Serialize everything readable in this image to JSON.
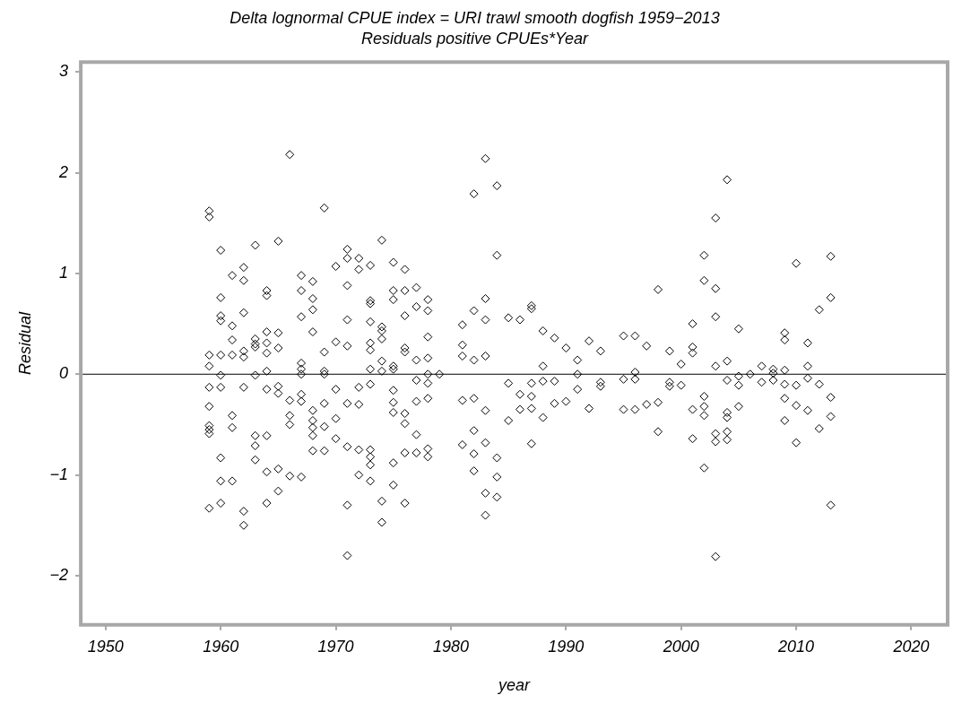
{
  "chart_data": {
    "type": "scatter",
    "title": "Delta lognormal CPUE index = URI trawl smooth dogfish 1959−2013",
    "subtitle": "Residuals positive CPUEs*Year",
    "xlabel": "year",
    "ylabel": "Residual",
    "x": [
      1959,
      1959,
      1959,
      1959,
      1959,
      1959,
      1959,
      1959,
      1959,
      1959,
      1960,
      1960,
      1960,
      1960,
      1960,
      1960,
      1960,
      1960,
      1960,
      1960,
      1961,
      1961,
      1961,
      1961,
      1961,
      1961,
      1961,
      1962,
      1962,
      1962,
      1962,
      1962,
      1962,
      1962,
      1962,
      1963,
      1963,
      1963,
      1963,
      1963,
      1963,
      1963,
      1963,
      1964,
      1964,
      1964,
      1964,
      1964,
      1964,
      1964,
      1964,
      1964,
      1964,
      1965,
      1965,
      1965,
      1965,
      1965,
      1965,
      1965,
      1966,
      1966,
      1966,
      1966,
      1966,
      1967,
      1967,
      1967,
      1967,
      1967,
      1967,
      1967,
      1967,
      1967,
      1968,
      1968,
      1968,
      1968,
      1968,
      1968,
      1968,
      1968,
      1968,
      1969,
      1969,
      1969,
      1969,
      1969,
      1969,
      1969,
      1970,
      1970,
      1970,
      1970,
      1970,
      1971,
      1971,
      1971,
      1971,
      1971,
      1971,
      1971,
      1971,
      1971,
      1972,
      1972,
      1972,
      1972,
      1972,
      1972,
      1973,
      1973,
      1973,
      1973,
      1973,
      1973,
      1973,
      1973,
      1973,
      1973,
      1973,
      1973,
      1974,
      1974,
      1974,
      1974,
      1974,
      1974,
      1974,
      1974,
      1975,
      1975,
      1975,
      1975,
      1975,
      1975,
      1975,
      1975,
      1975,
      1975,
      1976,
      1976,
      1976,
      1976,
      1976,
      1976,
      1976,
      1976,
      1976,
      1977,
      1977,
      1977,
      1977,
      1977,
      1977,
      1977,
      1978,
      1978,
      1978,
      1978,
      1978,
      1978,
      1978,
      1978,
      1978,
      1979,
      1981,
      1981,
      1981,
      1981,
      1981,
      1982,
      1982,
      1982,
      1982,
      1982,
      1982,
      1982,
      1983,
      1983,
      1983,
      1983,
      1983,
      1983,
      1983,
      1983,
      1984,
      1984,
      1984,
      1984,
      1984,
      1985,
      1985,
      1985,
      1986,
      1986,
      1986,
      1987,
      1987,
      1987,
      1987,
      1987,
      1987,
      1988,
      1988,
      1988,
      1988,
      1989,
      1989,
      1989,
      1990,
      1990,
      1991,
      1991,
      1991,
      1992,
      1992,
      1993,
      1993,
      1993,
      1995,
      1995,
      1995,
      1996,
      1996,
      1996,
      1996,
      1997,
      1997,
      1998,
      1998,
      1998,
      1999,
      1999,
      1999,
      2000,
      2000,
      2001,
      2001,
      2001,
      2001,
      2001,
      2002,
      2002,
      2002,
      2002,
      2002,
      2002,
      2003,
      2003,
      2003,
      2003,
      2003,
      2003,
      2003,
      2004,
      2004,
      2004,
      2004,
      2004,
      2004,
      2004,
      2005,
      2005,
      2005,
      2005,
      2006,
      2007,
      2007,
      2008,
      2008,
      2008,
      2009,
      2009,
      2009,
      2009,
      2009,
      2009,
      2010,
      2010,
      2010,
      2010,
      2011,
      2011,
      2011,
      2011,
      2012,
      2012,
      2012,
      2013,
      2013,
      2013,
      2013,
      2013
    ],
    "values": [
      1.62,
      1.56,
      0.19,
      0.08,
      -0.13,
      -0.32,
      -0.51,
      -0.55,
      -0.59,
      -1.33,
      1.23,
      0.76,
      0.58,
      0.53,
      0.19,
      -0.01,
      -0.13,
      -0.83,
      -1.06,
      -1.28,
      0.98,
      0.48,
      0.34,
      0.19,
      -0.41,
      -0.53,
      -1.06,
      1.06,
      0.93,
      0.61,
      0.23,
      0.17,
      -0.13,
      -1.36,
      -1.5,
      1.28,
      0.35,
      0.3,
      0.27,
      -0.01,
      -0.61,
      -0.71,
      -0.85,
      0.83,
      0.78,
      0.42,
      0.31,
      0.21,
      0.03,
      -0.15,
      -0.61,
      -0.97,
      -1.28,
      1.32,
      0.41,
      0.26,
      -0.12,
      -0.19,
      -0.94,
      -1.16,
      2.18,
      -0.26,
      -0.41,
      -0.5,
      -1.01,
      0.98,
      0.83,
      0.57,
      0.11,
      0.05,
      0,
      -0.2,
      -0.27,
      -1.02,
      0.92,
      0.75,
      0.64,
      0.42,
      -0.36,
      -0.46,
      -0.53,
      -0.61,
      -0.76,
      1.65,
      0.22,
      0.03,
      0,
      -0.29,
      -0.52,
      -0.76,
      1.07,
      0.32,
      -0.15,
      -0.44,
      -0.64,
      1.24,
      1.15,
      0.88,
      0.54,
      0.28,
      -0.29,
      -0.72,
      -1.3,
      -1.8,
      1.15,
      1.04,
      -0.13,
      -0.3,
      -0.75,
      -1,
      1.08,
      0.73,
      0.7,
      0.52,
      0.31,
      0.24,
      0.05,
      -0.1,
      -0.75,
      -0.82,
      -0.9,
      -1.06,
      1.33,
      0.47,
      0.43,
      0.35,
      0.13,
      0.03,
      -1.26,
      -1.47,
      1.11,
      0.83,
      0.74,
      0.08,
      0.05,
      -0.16,
      -0.28,
      -0.38,
      -0.88,
      -1.1,
      1.04,
      0.83,
      0.58,
      0.26,
      0.22,
      -0.39,
      -0.49,
      -0.78,
      -1.28,
      0.86,
      0.67,
      0.14,
      -0.06,
      -0.27,
      -0.6,
      -0.78,
      0.74,
      0.63,
      0.37,
      0.16,
      0,
      -0.09,
      -0.24,
      -0.74,
      -0.82,
      0,
      0.49,
      0.29,
      0.18,
      -0.26,
      -0.7,
      1.79,
      0.63,
      0.14,
      -0.24,
      -0.56,
      -0.79,
      -0.96,
      2.14,
      0.75,
      0.54,
      0.18,
      -0.36,
      -0.68,
      -1.18,
      -1.4,
      1.87,
      1.18,
      -0.83,
      -1.02,
      -1.22,
      0.56,
      -0.09,
      -0.46,
      0.54,
      -0.2,
      -0.35,
      0.68,
      0.65,
      -0.09,
      -0.22,
      -0.34,
      -0.69,
      0.43,
      0.08,
      -0.07,
      -0.43,
      0.36,
      -0.07,
      -0.29,
      0.26,
      -0.27,
      0.14,
      0,
      -0.15,
      0.33,
      -0.34,
      0.23,
      -0.08,
      -0.12,
      0.38,
      -0.05,
      -0.35,
      0.38,
      0.02,
      -0.05,
      -0.35,
      0.28,
      -0.3,
      0.84,
      -0.28,
      -0.57,
      0.23,
      -0.08,
      -0.12,
      0.1,
      -0.11,
      0.5,
      0.27,
      0.21,
      -0.35,
      -0.64,
      1.18,
      0.93,
      -0.22,
      -0.32,
      -0.41,
      -0.93,
      1.55,
      0.85,
      0.57,
      0.08,
      -0.59,
      -0.67,
      -1.81,
      1.93,
      0.13,
      -0.06,
      -0.38,
      -0.43,
      -0.57,
      -0.65,
      0.45,
      -0.02,
      -0.11,
      -0.32,
      0,
      0.08,
      -0.08,
      0.05,
      0.01,
      -0.06,
      0.41,
      0.34,
      0.04,
      -0.1,
      -0.24,
      -0.46,
      1.1,
      -0.11,
      -0.31,
      -0.68,
      0.31,
      0.08,
      -0.04,
      -0.36,
      0.64,
      -0.1,
      -0.54,
      1.17,
      0.76,
      -0.23,
      -0.42,
      -1.3
    ],
    "color": "#000000",
    "marker": "diamond",
    "legend": false,
    "grid": false,
    "xlim": [
      1948,
      2023
    ],
    "xticks": [
      1950,
      1960,
      1970,
      1980,
      1990,
      2000,
      2010,
      2020
    ],
    "ylim": [
      -2.47,
      3.08
    ],
    "yticks": [
      {
        "value": -2,
        "label": "−2"
      },
      {
        "value": -1,
        "label": "−1"
      },
      0,
      1,
      2,
      3
    ],
    "ref_lines": [
      {
        "axis": "y",
        "value": 0,
        "color": "#000000"
      }
    ]
  }
}
